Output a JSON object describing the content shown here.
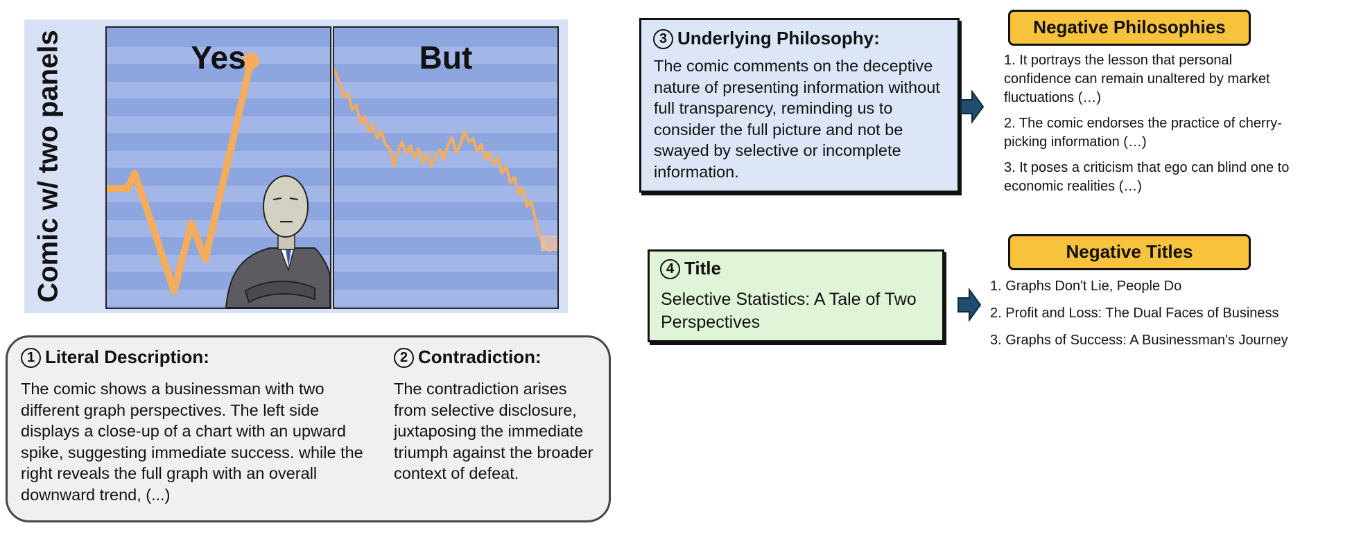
{
  "comic": {
    "side_label": "Comic w/ two panels",
    "left_panel_title": "Yes",
    "right_panel_title": "But"
  },
  "literal": {
    "number": "1",
    "heading": "Literal Description:",
    "body": "The comic shows a businessman with two different graph perspectives. The left side displays a close-up of a chart with an upward spike, suggesting immediate success. while the right reveals the full graph with an overall downward trend, (...)"
  },
  "contradiction": {
    "number": "2",
    "heading": "Contradiction:",
    "body": "The contradiction arises from selective disclosure, juxtaposing the immediate triumph against the broader context of defeat."
  },
  "philosophy": {
    "number": "3",
    "heading": "Underlying Philosophy:",
    "body": "The comic comments on the deceptive nature of presenting information without full transparency, reminding us to consider the full picture and not be swayed by selective or incomplete information."
  },
  "title_box": {
    "number": "4",
    "heading": "Title",
    "body": "Selective Statistics: A Tale of Two Perspectives"
  },
  "negative_philosophies": {
    "badge": "Negative Philosophies",
    "items": [
      "1. It portrays the lesson that personal confidence can remain unaltered by market fluctuations (…)",
      "2. The comic endorses the practice of cherry-picking information (…)",
      "3. It poses a criticism that ego can blind one to economic realities (…)"
    ]
  },
  "negative_titles": {
    "badge": "Negative Titles",
    "items": [
      "1. Graphs Don't Lie, People Do",
      "2. Profit and Loss: The Dual Faces of Business",
      "3. Graphs of Success: A Businessman's Journey"
    ]
  },
  "colors": {
    "panel_bg": "#8ea6df",
    "graph_line": "#f5ad5c",
    "badge": "#f7c23c",
    "arrow": "#1f4e6e"
  }
}
